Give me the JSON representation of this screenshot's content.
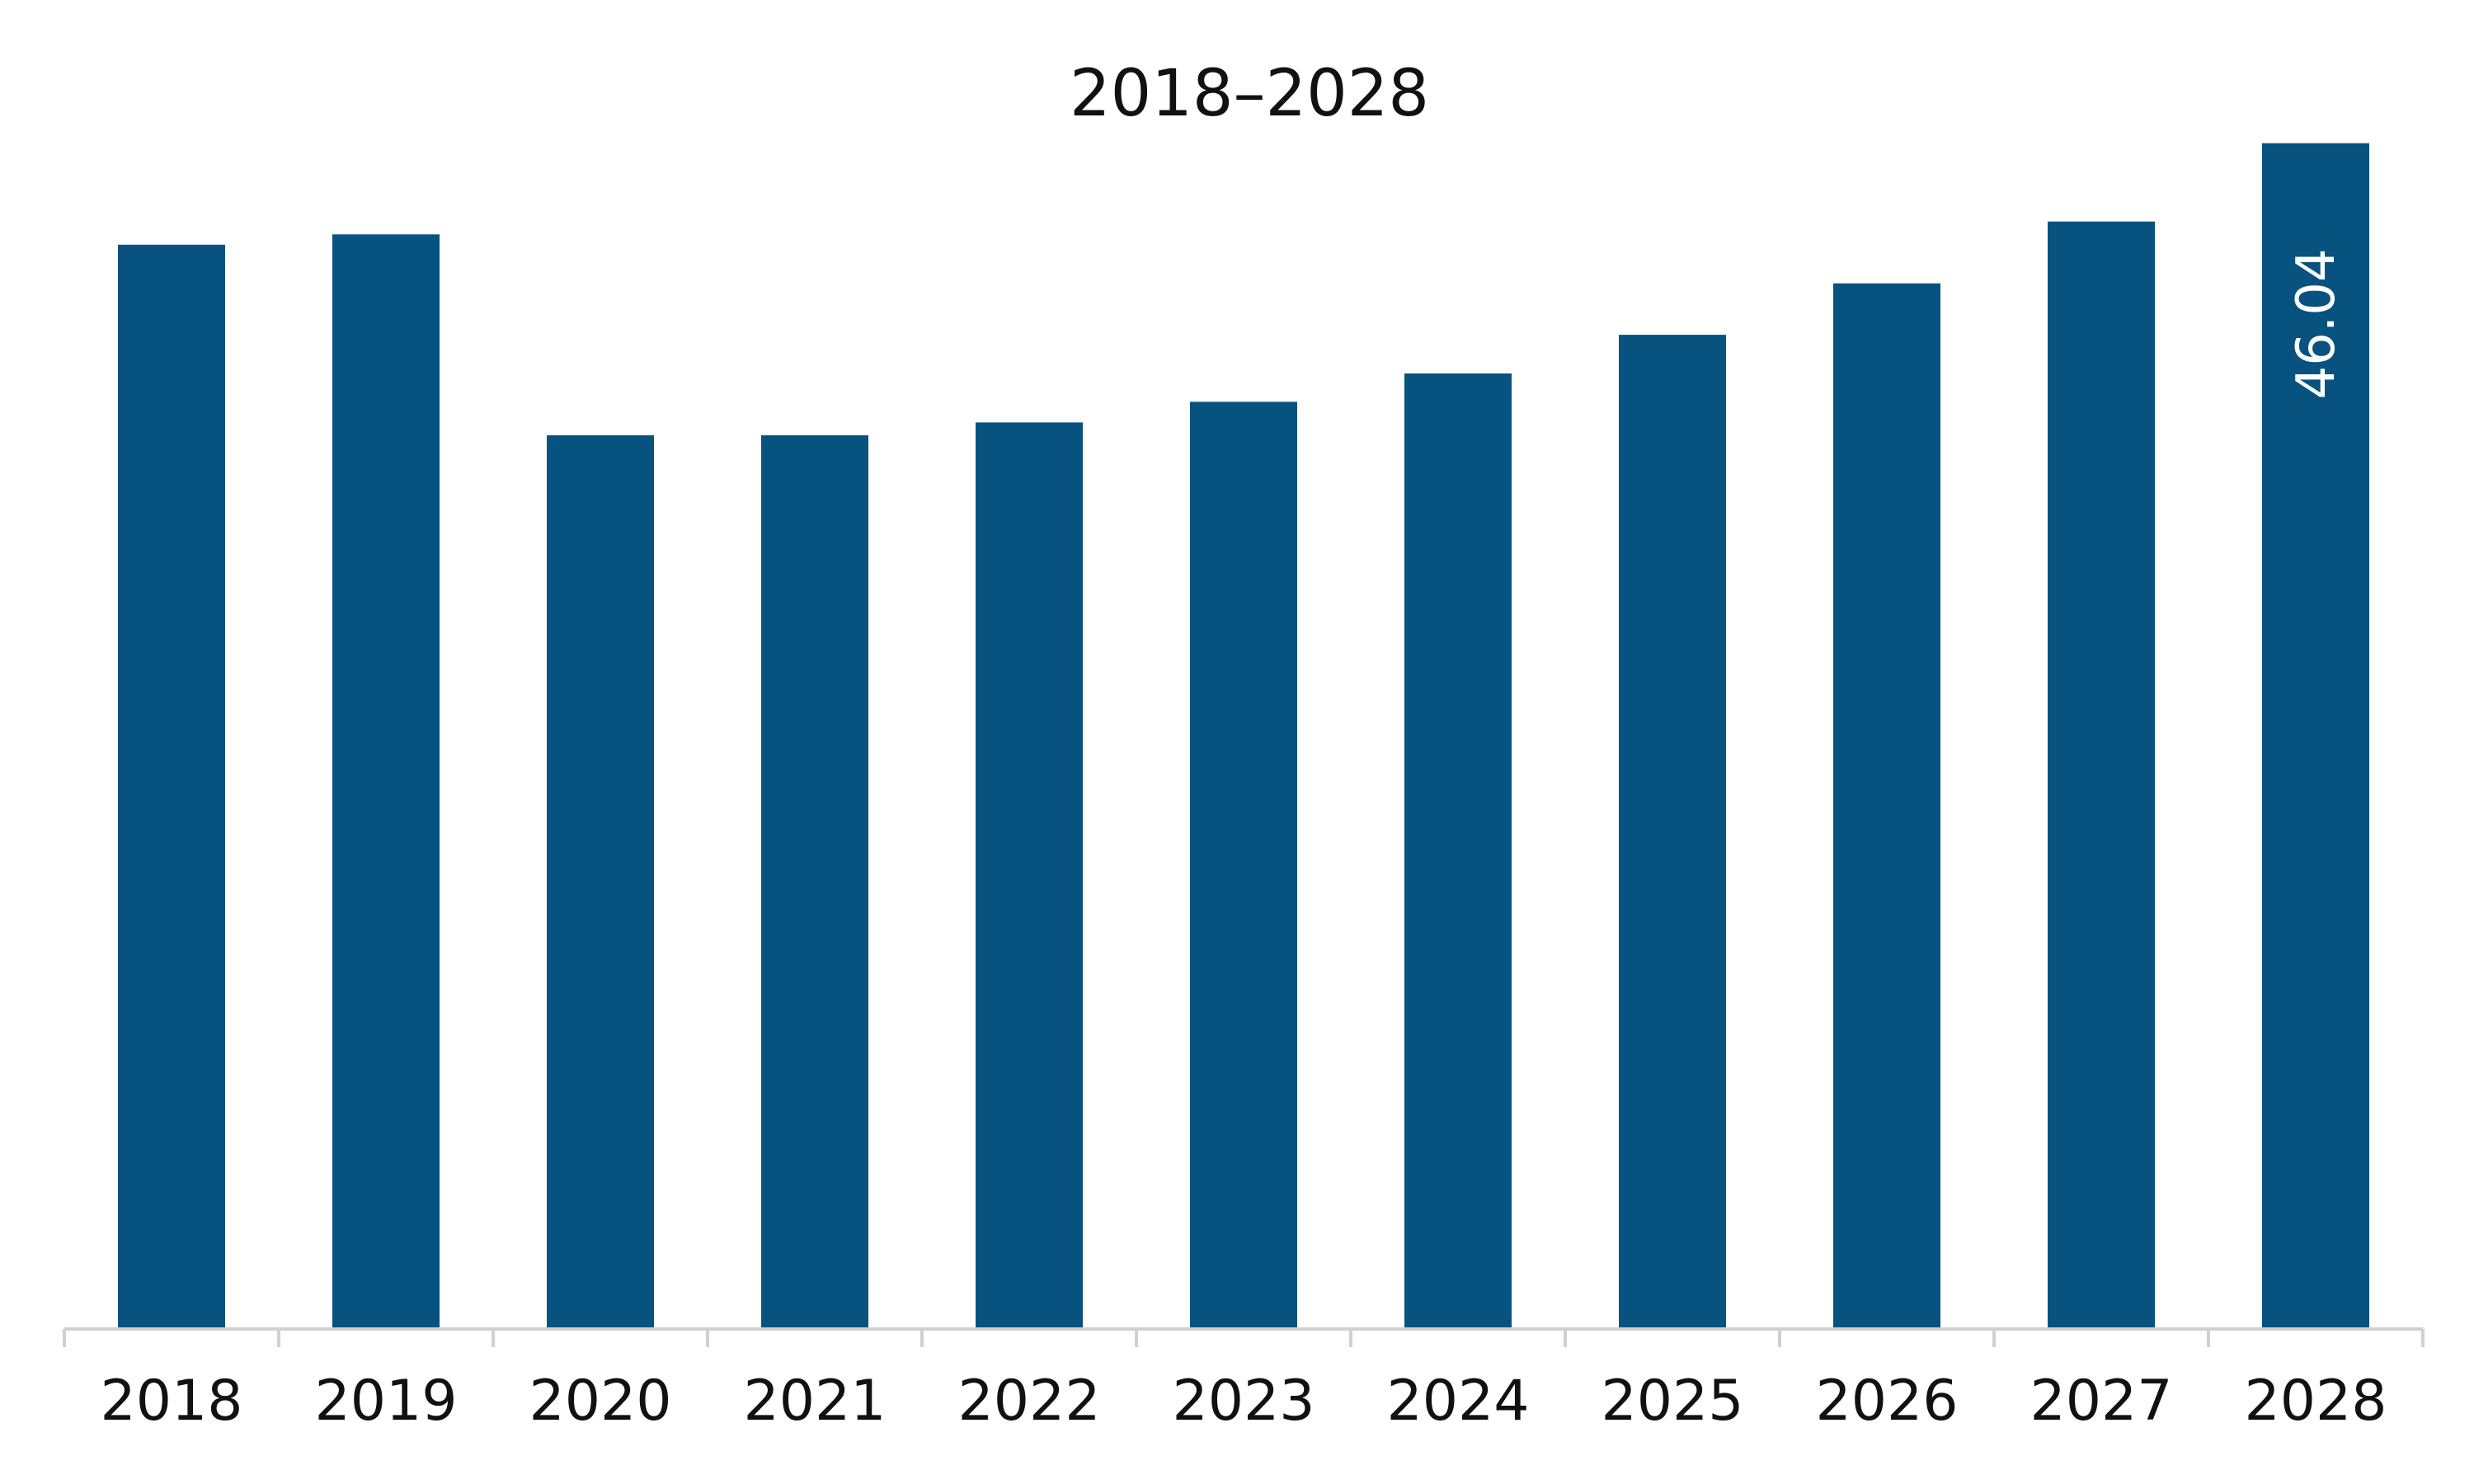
{
  "chart_data": {
    "type": "bar",
    "title": "2018–2028",
    "categories": [
      "2018",
      "2019",
      "2020",
      "2021",
      "2022",
      "2023",
      "2024",
      "2025",
      "2026",
      "2027",
      "2028"
    ],
    "values": [
      42.1,
      42.5,
      34.7,
      34.7,
      35.2,
      36.0,
      37.1,
      38.6,
      40.6,
      43.0,
      46.04
    ],
    "data_labels": [
      "",
      "",
      "",
      "",
      "",
      "",
      "",
      "",
      "",
      "",
      "46.04"
    ],
    "ylim": [
      0,
      50
    ],
    "xlabel": "",
    "ylabel": "",
    "grid": false,
    "bar_color": "#07527F",
    "axis_color": "#D0D0D0",
    "text_color": "#111111",
    "label_color": "#FFFFFF"
  }
}
